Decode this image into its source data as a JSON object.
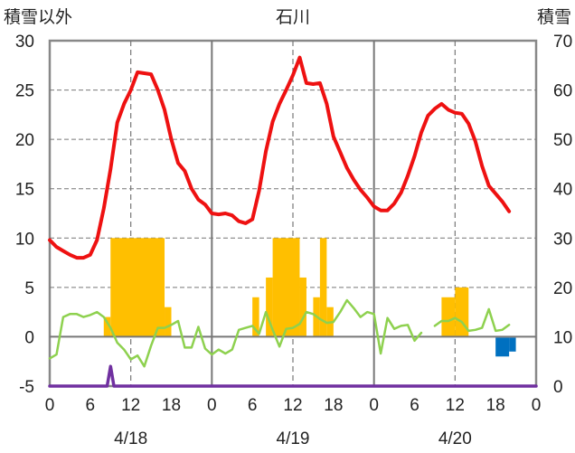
{
  "chart_data": {
    "type": "line",
    "title": "石川",
    "y_left_label": "積雪以外",
    "y_right_label": "積雪",
    "y_left": {
      "min": -5,
      "max": 30,
      "ticks": [
        30,
        25,
        20,
        15,
        10,
        5,
        0,
        -5
      ]
    },
    "y_right": {
      "min": 0,
      "max": 70,
      "ticks": [
        70,
        60,
        50,
        40,
        30,
        20,
        10,
        0
      ]
    },
    "x": {
      "min": 0,
      "max": 72,
      "tick_hours": [
        0,
        6,
        12,
        18,
        0,
        6,
        12,
        18,
        0,
        6,
        12,
        18,
        0
      ]
    },
    "day_labels": [
      "4/18",
      "4/19",
      "4/20"
    ],
    "colors": {
      "temperature": "#ee1111",
      "precipitation": "#ffbf00",
      "wind": "#8ed14f",
      "snow_depth": "#0070c0",
      "snowfall": "#7030a0",
      "grid": "#777777"
    },
    "series": [
      {
        "key": "temperature",
        "axis": "left",
        "values": [
          [
            0,
            9.8
          ],
          [
            1,
            9.1
          ],
          [
            2,
            8.7
          ],
          [
            3,
            8.3
          ],
          [
            4,
            8.0
          ],
          [
            5,
            8.0
          ],
          [
            6,
            8.3
          ],
          [
            7,
            9.8
          ],
          [
            8,
            13.0
          ],
          [
            9,
            17.0
          ],
          [
            10,
            21.7
          ],
          [
            11,
            23.6
          ],
          [
            12,
            25.0
          ],
          [
            13,
            26.8
          ],
          [
            14,
            26.7
          ],
          [
            15,
            26.6
          ],
          [
            16,
            25.0
          ],
          [
            17,
            23.0
          ],
          [
            18,
            20.0
          ],
          [
            19,
            17.6
          ],
          [
            20,
            16.8
          ],
          [
            21,
            15.0
          ],
          [
            22,
            13.9
          ],
          [
            23,
            13.4
          ],
          [
            24,
            12.5
          ],
          [
            25,
            12.4
          ],
          [
            26,
            12.5
          ],
          [
            27,
            12.3
          ],
          [
            28,
            11.7
          ],
          [
            29,
            11.5
          ],
          [
            30,
            11.9
          ],
          [
            31,
            14.8
          ],
          [
            32,
            18.8
          ],
          [
            33,
            21.8
          ],
          [
            34,
            23.6
          ],
          [
            35,
            25.0
          ],
          [
            36,
            26.5
          ],
          [
            37,
            28.3
          ],
          [
            38,
            25.7
          ],
          [
            39,
            25.6
          ],
          [
            40,
            25.7
          ],
          [
            41,
            23.6
          ],
          [
            42,
            20.3
          ],
          [
            43,
            18.7
          ],
          [
            44,
            17.1
          ],
          [
            45,
            15.9
          ],
          [
            46,
            14.9
          ],
          [
            47,
            14.1
          ],
          [
            48,
            13.2
          ],
          [
            49,
            12.8
          ],
          [
            50,
            12.8
          ],
          [
            51,
            13.5
          ],
          [
            52,
            14.6
          ],
          [
            53,
            16.3
          ],
          [
            54,
            18.3
          ],
          [
            55,
            20.7
          ],
          [
            56,
            22.4
          ],
          [
            57,
            23.1
          ],
          [
            58,
            23.6
          ],
          [
            59,
            23.0
          ],
          [
            60,
            22.7
          ],
          [
            61,
            22.6
          ],
          [
            62,
            21.6
          ],
          [
            63,
            19.8
          ],
          [
            64,
            17.3
          ],
          [
            65,
            15.3
          ],
          [
            66,
            14.5
          ],
          [
            67,
            13.7
          ],
          [
            68,
            12.7
          ]
        ]
      },
      {
        "key": "wind",
        "axis": "left",
        "values": [
          [
            0,
            -2.2
          ],
          [
            1,
            -1.8
          ],
          [
            2,
            2.0
          ],
          [
            3,
            2.3
          ],
          [
            4,
            2.3
          ],
          [
            5,
            2.0
          ],
          [
            6,
            2.2
          ],
          [
            7,
            2.5
          ],
          [
            8,
            2.0
          ],
          [
            9,
            0.9
          ],
          [
            10,
            -0.6
          ],
          [
            11,
            -1.3
          ],
          [
            12,
            -2.3
          ],
          [
            13,
            -1.9
          ],
          [
            14,
            -3.0
          ],
          [
            15,
            -0.9
          ],
          [
            16,
            0.9
          ],
          [
            17,
            0.9
          ],
          [
            18,
            1.2
          ],
          [
            19,
            1.6
          ],
          [
            20,
            -1.1
          ],
          [
            21,
            -1.1
          ],
          [
            22,
            1.0
          ],
          [
            23,
            -1.2
          ],
          [
            24,
            -1.8
          ],
          [
            25,
            -1.3
          ],
          [
            26,
            -1.7
          ],
          [
            27,
            -1.3
          ],
          [
            28,
            0.7
          ],
          [
            29,
            0.9
          ],
          [
            30,
            1.1
          ],
          [
            31,
            0.3
          ],
          [
            32,
            2.5
          ],
          [
            33,
            0.7
          ],
          [
            34,
            -1.0
          ],
          [
            35,
            0.8
          ],
          [
            36,
            0.9
          ],
          [
            37,
            1.3
          ],
          [
            38,
            2.5
          ],
          [
            39,
            2.3
          ],
          [
            40,
            1.8
          ],
          [
            41,
            1.4
          ],
          [
            42,
            1.5
          ],
          [
            43,
            2.5
          ],
          [
            44,
            3.7
          ],
          [
            45,
            2.9
          ],
          [
            46,
            2.0
          ],
          [
            47,
            2.5
          ],
          [
            48,
            2.3
          ],
          [
            49,
            -1.7
          ],
          [
            50,
            1.9
          ],
          [
            51,
            0.8
          ],
          [
            52,
            1.1
          ],
          [
            53,
            1.2
          ],
          [
            54,
            -0.4
          ],
          [
            55,
            0.4
          ],
          null,
          [
            57,
            1.1
          ],
          [
            58,
            1.6
          ],
          [
            59,
            1.6
          ],
          [
            60,
            1.9
          ],
          [
            61,
            1.5
          ],
          [
            62,
            0.6
          ],
          [
            63,
            0.7
          ],
          [
            64,
            0.9
          ],
          [
            65,
            2.8
          ],
          [
            66,
            0.6
          ],
          [
            67,
            0.7
          ],
          [
            68,
            1.2
          ]
        ]
      },
      {
        "key": "snowfall",
        "axis": "left",
        "values": [
          [
            0,
            -5
          ],
          [
            8.5,
            -5
          ],
          [
            9,
            -3
          ],
          [
            9.5,
            -5
          ],
          [
            72,
            -5
          ]
        ]
      }
    ],
    "precipitation_bars": [
      {
        "x0": 8,
        "x1": 9,
        "top": 2
      },
      {
        "x0": 9,
        "x1": 17,
        "top": 10
      },
      {
        "x0": 17,
        "x1": 18,
        "top": 3
      },
      {
        "x0": 30,
        "x1": 31,
        "top": 4
      },
      {
        "x0": 32,
        "x1": 33,
        "top": 6
      },
      {
        "x0": 33,
        "x1": 37,
        "top": 10
      },
      {
        "x0": 37,
        "x1": 38,
        "top": 6
      },
      {
        "x0": 39,
        "x1": 40,
        "top": 4
      },
      {
        "x0": 40,
        "x1": 41,
        "top": 10
      },
      {
        "x0": 41,
        "x1": 42,
        "top": 3
      },
      {
        "x0": 58,
        "x1": 60,
        "top": 4
      },
      {
        "x0": 60,
        "x1": 62,
        "top": 5
      }
    ],
    "snow_depth_bars": [
      {
        "x0": 66,
        "x1": 68,
        "bottom": -2
      },
      {
        "x0": 68,
        "x1": 69,
        "bottom": -1.5
      }
    ]
  }
}
